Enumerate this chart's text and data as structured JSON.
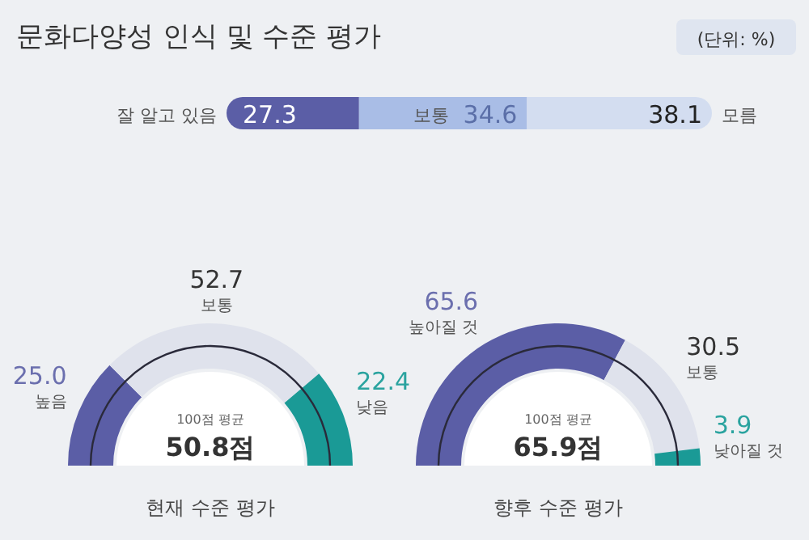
{
  "chart_data": [
    {
      "type": "bar",
      "orientation": "horizontal",
      "stacked": true,
      "title": "문화다양성 인식 및 수준 평가",
      "annotations": [
        "(단위: %)"
      ],
      "categories": [
        null
      ],
      "xlim": [
        0,
        100
      ],
      "tick_labels": false,
      "data_labels": true,
      "series": [
        {
          "name": "잘 알고 있음",
          "color": "#5b5ea6",
          "values": [
            27.3
          ]
        },
        {
          "name": "보통",
          "color": "#a9bde6",
          "values": [
            34.6
          ]
        },
        {
          "name": "모름",
          "color": "#d3ddf0",
          "values": [
            38.1
          ]
        }
      ]
    },
    {
      "type": "donut",
      "title": "현재 수준 평가",
      "annotations": [
        "100점 평균",
        "50.8점"
      ],
      "categories": [
        "높음",
        "보통",
        "낮음"
      ],
      "values": [
        25.0,
        52.7,
        22.4
      ],
      "value_labels": [
        "25.0",
        "52.7",
        "22.4"
      ],
      "colors": [
        "#5b5ea6",
        "#dfe2ec",
        "#1a9a96"
      ]
    },
    {
      "type": "donut",
      "title": "향후 수준 평가",
      "annotations": [
        "100점 평균",
        "65.9점"
      ],
      "categories": [
        "높아질 것",
        "보통",
        "낮아질 것"
      ],
      "values": [
        65.6,
        30.5,
        3.9
      ],
      "value_labels": [
        "65.6",
        "30.5",
        "3.9"
      ],
      "colors": [
        "#5b5ea6",
        "#dfe2ec",
        "#1a9a96"
      ]
    }
  ]
}
